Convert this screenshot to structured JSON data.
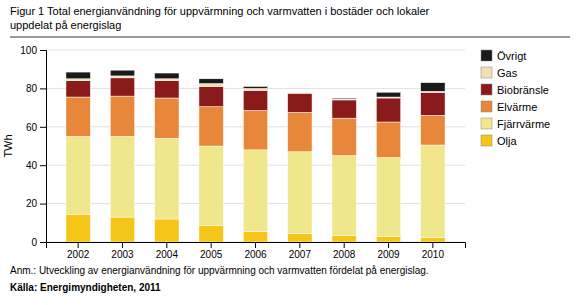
{
  "chart_data": {
    "type": "bar",
    "stacked": true,
    "title": "Figur 1 Total energianvändning för uppvärmning och varmvatten i bostäder och lokaler",
    "subtitle": "uppdelat på energislag",
    "y_label": "TWh",
    "annotations": [
      "Anm.: Utveckling av energianvändning för uppvärmning och varmvatten fördelat på energislag.",
      "Källa: Energimyndigheten, 2011"
    ],
    "categories": [
      "2002",
      "2003",
      "2004",
      "2005",
      "2006",
      "2007",
      "2008",
      "2009",
      "2010"
    ],
    "series": [
      {
        "name": "Olja",
        "color": "#F5C518",
        "values": [
          14.5,
          13.0,
          12.0,
          8.5,
          5.5,
          4.5,
          3.5,
          3.0,
          2.5
        ]
      },
      {
        "name": "Fjärrvärme",
        "color": "#F0E68C",
        "values": [
          40.5,
          42.0,
          42.0,
          41.5,
          42.5,
          42.5,
          41.5,
          41.0,
          48.0
        ]
      },
      {
        "name": "Elvärme",
        "color": "#E8873A",
        "values": [
          20.5,
          21.0,
          21.0,
          20.5,
          20.5,
          20.5,
          19.5,
          18.5,
          15.5
        ]
      },
      {
        "name": "Biobränsle",
        "color": "#8B1A1A",
        "values": [
          8.5,
          9.5,
          9.0,
          10.5,
          10.5,
          10.0,
          9.5,
          12.5,
          12.0
        ]
      },
      {
        "name": "Gas",
        "color": "#F5DEB3",
        "values": [
          1.0,
          1.0,
          1.0,
          1.5,
          1.0,
          0.5,
          0.5,
          0.5,
          0.5
        ]
      },
      {
        "name": "Övrigt",
        "color": "#1A1A1A",
        "values": [
          3.5,
          3.0,
          3.0,
          2.5,
          1.0,
          0.0,
          0.5,
          2.5,
          4.5
        ]
      }
    ],
    "ylim": [
      0,
      100
    ],
    "yticks": [
      0,
      20,
      40,
      60,
      80,
      100
    ],
    "grid": true,
    "legend": "right"
  }
}
